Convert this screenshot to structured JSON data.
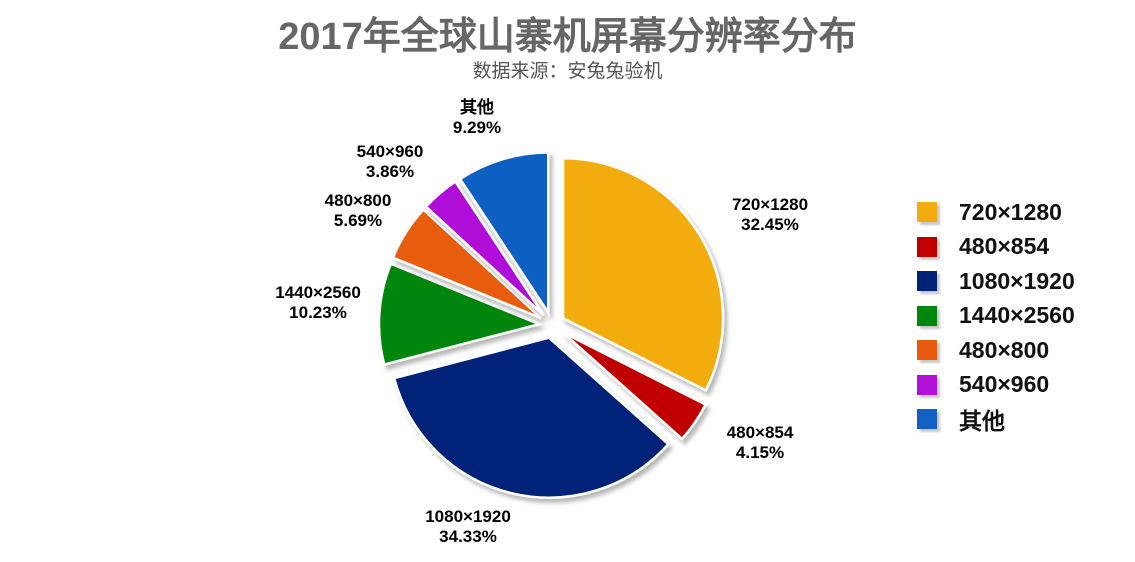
{
  "chart_data": {
    "type": "pie",
    "title": "2017年全球山寨机屏幕分辨率分布",
    "subtitle": "数据来源：安兔兔验机",
    "legend_position": "right",
    "slices": [
      {
        "name": "720×1280",
        "value": 32.45,
        "label": "32.45%",
        "color": "#f2ac0f"
      },
      {
        "name": "480×854",
        "value": 4.15,
        "label": "4.15%",
        "color": "#c00000"
      },
      {
        "name": "1080×1920",
        "value": 34.33,
        "label": "34.33%",
        "color": "#002378"
      },
      {
        "name": "1440×2560",
        "value": 10.23,
        "label": "10.23%",
        "color": "#00860a"
      },
      {
        "name": "480×800",
        "value": 5.69,
        "label": "5.69%",
        "color": "#e85b0e"
      },
      {
        "name": "540×960",
        "value": 3.86,
        "label": "3.86%",
        "color": "#b010d8"
      },
      {
        "name": "其他",
        "value": 9.29,
        "label": "9.29%",
        "color": "#1160c2"
      }
    ]
  }
}
